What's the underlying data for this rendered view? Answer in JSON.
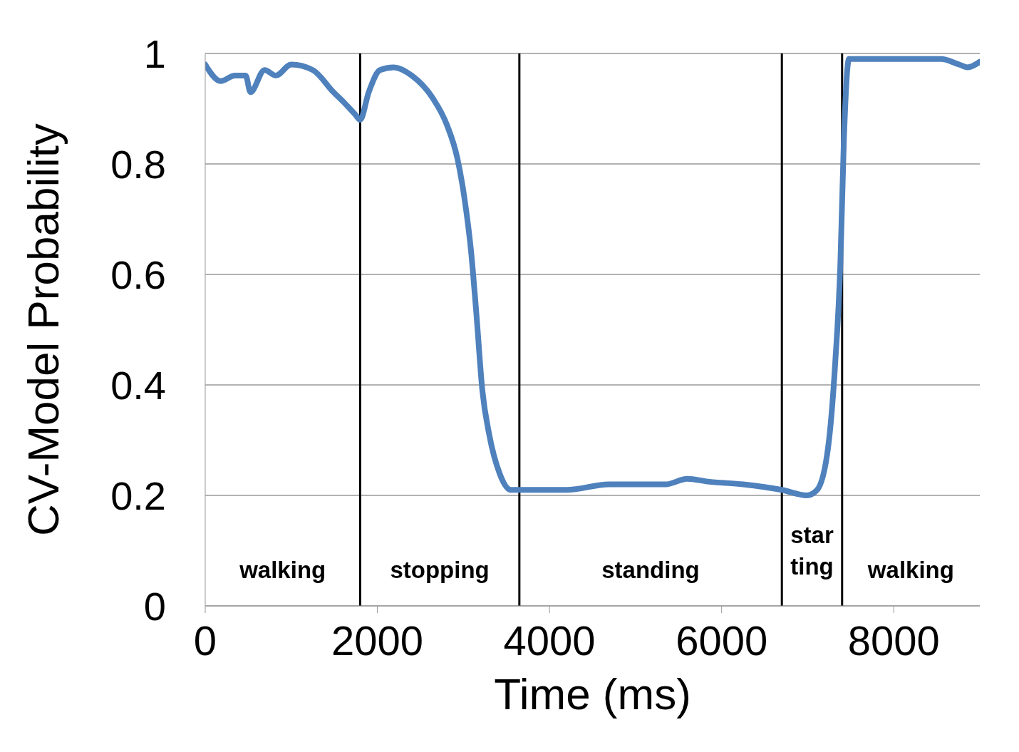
{
  "chart_data": {
    "type": "line",
    "xlabel": "Time (ms)",
    "ylabel": "CV-Model Probability",
    "x": [
      0,
      180,
      345,
      470,
      525,
      690,
      820,
      1000,
      1250,
      1490,
      1620,
      1740,
      1800,
      1900,
      2030,
      2190,
      2400,
      2640,
      2810,
      2930,
      3010,
      3090,
      3150,
      3220,
      3300,
      3420,
      3550,
      3640,
      3870,
      4200,
      4690,
      5020,
      5350,
      5600,
      5840,
      6250,
      6700,
      6990,
      7110,
      7240,
      7320,
      7380,
      7420,
      7480,
      7650,
      7980,
      8300,
      8550,
      8760,
      8860,
      9000
    ],
    "series": [
      {
        "color": "#4f81bd",
        "values": [
          0.98,
          0.95,
          0.96,
          0.96,
          0.93,
          0.97,
          0.96,
          0.98,
          0.97,
          0.93,
          0.91,
          0.89,
          0.88,
          0.93,
          0.97,
          0.975,
          0.96,
          0.92,
          0.87,
          0.81,
          0.74,
          0.64,
          0.53,
          0.39,
          0.31,
          0.24,
          0.21,
          0.21,
          0.21,
          0.21,
          0.22,
          0.22,
          0.22,
          0.23,
          0.225,
          0.22,
          0.21,
          0.2,
          0.21,
          0.29,
          0.44,
          0.62,
          0.84,
          0.99,
          0.99,
          0.99,
          0.99,
          0.99,
          0.98,
          0.975,
          0.985
        ]
      }
    ],
    "xlim": [
      0,
      9000
    ],
    "xticks": [
      0,
      2000,
      4000,
      6000,
      8000
    ],
    "ylim": [
      0,
      1
    ],
    "yticks": [
      0,
      0.2,
      0.4,
      0.6,
      0.8,
      1
    ],
    "grid": "y",
    "legend": false,
    "marker": "none",
    "line_style": "solid",
    "ref_lines": [
      {
        "axis": "x",
        "value": 1800,
        "color": "#000000"
      },
      {
        "axis": "x",
        "value": 3650,
        "color": "#000000"
      },
      {
        "axis": "x",
        "value": 6700,
        "color": "#000000"
      },
      {
        "axis": "x",
        "value": 7400,
        "color": "#000000"
      }
    ],
    "annotations": [
      "walking",
      "stopping",
      "standing",
      "star\nting",
      "walking"
    ]
  }
}
